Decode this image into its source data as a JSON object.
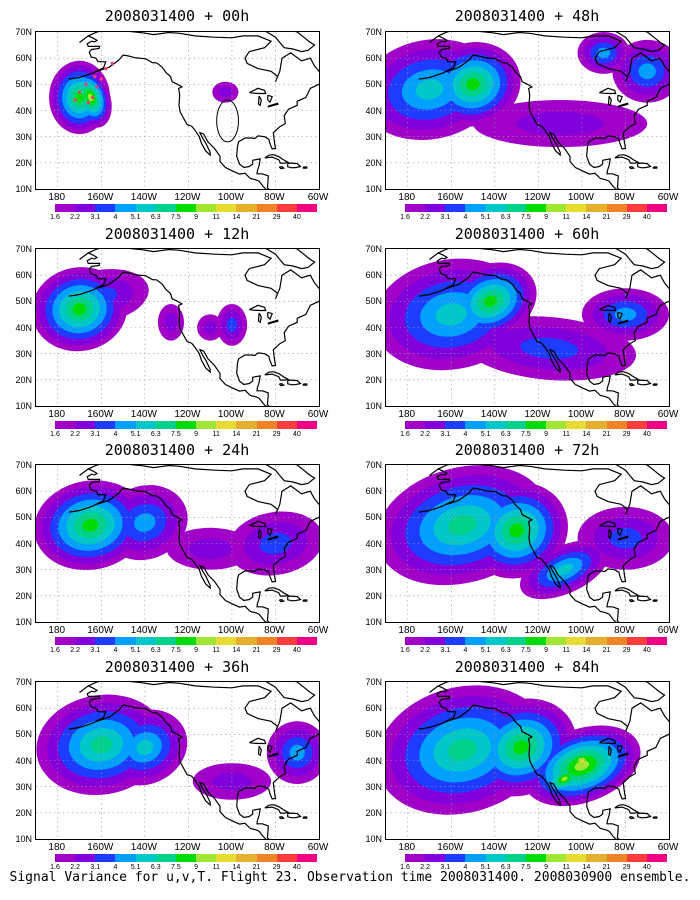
{
  "panels": [
    {
      "title": "2008031400 + 00h",
      "level": 0
    },
    {
      "title": "2008031400 + 12h",
      "level": 1
    },
    {
      "title": "2008031400 + 24h",
      "level": 2
    },
    {
      "title": "2008031400 + 36h",
      "level": 3
    },
    {
      "title": "2008031400 + 48h",
      "level": 4
    },
    {
      "title": "2008031400 + 60h",
      "level": 5
    },
    {
      "title": "2008031400 + 72h",
      "level": 6
    },
    {
      "title": "2008031400 + 84h",
      "level": 7
    }
  ],
  "lat_labels": [
    "70N",
    "60N",
    "50N",
    "40N",
    "30N",
    "20N",
    "10N"
  ],
  "lon_labels": [
    "180",
    "160W",
    "140W",
    "120W",
    "100W",
    "80W",
    "60W"
  ],
  "colorbar": {
    "labels": [
      "1.6",
      "2.2",
      "3.1",
      "4",
      "5.1",
      "6.3",
      "7.5",
      "9",
      "11",
      "14",
      "21",
      "29",
      "40"
    ],
    "colors": [
      "#a000c8",
      "#8200dc",
      "#1e3cff",
      "#00a0ff",
      "#00c8c8",
      "#00d28c",
      "#00dc00",
      "#a0e632",
      "#e6dc32",
      "#e6af2d",
      "#f08228",
      "#fa3c3c",
      "#f00082"
    ]
  },
  "footer": "Signal Variance for u,v,T. Flight 23. Observation time 2008031400. 2008030900 ensemble."
}
